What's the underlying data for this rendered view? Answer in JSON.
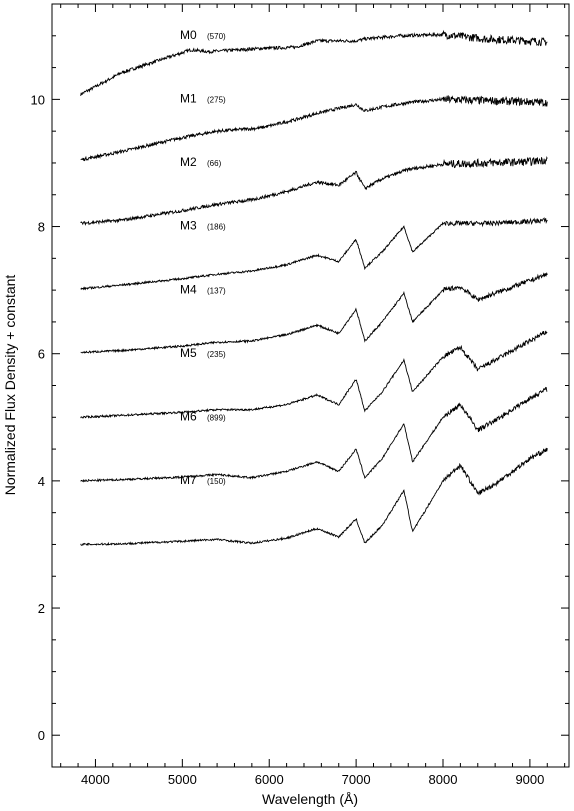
{
  "chart_data": {
    "type": "line",
    "xlabel": "Wavelength (Å)",
    "ylabel": "Normalized Flux Density + constant",
    "xlim": [
      3500,
      9450
    ],
    "ylim": [
      -0.5,
      11.5
    ],
    "xticks": [
      4000,
      5000,
      6000,
      7000,
      8000,
      9000
    ],
    "yticks": [
      0,
      2,
      4,
      6,
      8,
      10
    ],
    "grid": false,
    "legend": "none",
    "line_color": "#000000",
    "series": [
      {
        "name": "M0",
        "count": "(570)",
        "offset": 10,
        "x": [
          3830,
          4000,
          4300,
          4700,
          5100,
          5300,
          5900,
          6300,
          6550,
          7000,
          7100,
          7500,
          8000,
          8500,
          9000,
          9200
        ],
        "values": [
          0.08,
          0.2,
          0.42,
          0.6,
          0.78,
          0.75,
          0.8,
          0.82,
          0.92,
          0.92,
          0.95,
          1.0,
          1.02,
          0.95,
          0.92,
          0.9
        ]
      },
      {
        "name": "M1",
        "count": "(275)",
        "offset": 9,
        "x": [
          3830,
          4300,
          5000,
          5400,
          5900,
          6300,
          6550,
          7000,
          7100,
          7300,
          7600,
          8000,
          8500,
          9000,
          9200
        ],
        "values": [
          0.05,
          0.18,
          0.4,
          0.5,
          0.55,
          0.68,
          0.78,
          0.92,
          0.82,
          0.88,
          0.95,
          1.0,
          0.98,
          0.96,
          0.95
        ]
      },
      {
        "name": "M2",
        "count": "(66)",
        "offset": 8,
        "x": [
          3830,
          4300,
          5000,
          5400,
          5800,
          6200,
          6550,
          6800,
          7000,
          7100,
          7300,
          7600,
          8000,
          8500,
          9000,
          9200
        ],
        "values": [
          0.05,
          0.1,
          0.25,
          0.35,
          0.42,
          0.55,
          0.7,
          0.65,
          0.85,
          0.6,
          0.75,
          0.9,
          0.98,
          1.0,
          1.02,
          1.05
        ]
      },
      {
        "name": "M3",
        "count": "(186)",
        "offset": 7,
        "x": [
          3830,
          4300,
          5000,
          5400,
          5800,
          6200,
          6550,
          6800,
          7000,
          7100,
          7300,
          7550,
          7650,
          8000,
          8500,
          9000,
          9200
        ],
        "values": [
          0.02,
          0.08,
          0.18,
          0.25,
          0.3,
          0.4,
          0.55,
          0.45,
          0.8,
          0.35,
          0.6,
          1.0,
          0.6,
          1.05,
          1.05,
          1.08,
          1.1
        ]
      },
      {
        "name": "M4",
        "count": "(137)",
        "offset": 6,
        "x": [
          3830,
          4300,
          5000,
          5400,
          5800,
          6200,
          6550,
          6800,
          7000,
          7100,
          7300,
          7550,
          7650,
          8000,
          8200,
          8400,
          8600,
          9000,
          9200
        ],
        "values": [
          0.02,
          0.05,
          0.12,
          0.18,
          0.2,
          0.3,
          0.45,
          0.32,
          0.7,
          0.2,
          0.5,
          0.95,
          0.5,
          1.0,
          1.05,
          0.85,
          0.95,
          1.15,
          1.25
        ]
      },
      {
        "name": "M5",
        "count": "(235)",
        "offset": 5,
        "x": [
          3830,
          4300,
          5000,
          5400,
          5800,
          6200,
          6550,
          6800,
          7000,
          7100,
          7300,
          7550,
          7650,
          8000,
          8200,
          8400,
          8600,
          9000,
          9200
        ],
        "values": [
          0.0,
          0.03,
          0.08,
          0.12,
          0.12,
          0.2,
          0.35,
          0.2,
          0.6,
          0.1,
          0.4,
          0.9,
          0.4,
          0.95,
          1.1,
          0.75,
          0.9,
          1.2,
          1.35
        ]
      },
      {
        "name": "M6",
        "count": "(899)",
        "offset": 4,
        "x": [
          3830,
          4300,
          5000,
          5400,
          5800,
          6200,
          6550,
          6800,
          7000,
          7100,
          7300,
          7550,
          7650,
          8000,
          8200,
          8400,
          8600,
          9000,
          9200
        ],
        "values": [
          0.0,
          0.02,
          0.06,
          0.1,
          0.05,
          0.15,
          0.3,
          0.15,
          0.5,
          0.05,
          0.35,
          0.9,
          0.3,
          1.0,
          1.2,
          0.8,
          0.95,
          1.3,
          1.45
        ]
      },
      {
        "name": "M7",
        "count": "(150)",
        "offset": 3,
        "x": [
          3830,
          4300,
          5000,
          5400,
          5800,
          6200,
          6550,
          6800,
          7000,
          7100,
          7300,
          7550,
          7650,
          8000,
          8200,
          8400,
          8600,
          9000,
          9200
        ],
        "values": [
          0.0,
          0.01,
          0.05,
          0.08,
          0.02,
          0.1,
          0.25,
          0.12,
          0.4,
          0.02,
          0.3,
          0.85,
          0.2,
          1.0,
          1.25,
          0.8,
          0.95,
          1.35,
          1.5
        ]
      }
    ]
  }
}
